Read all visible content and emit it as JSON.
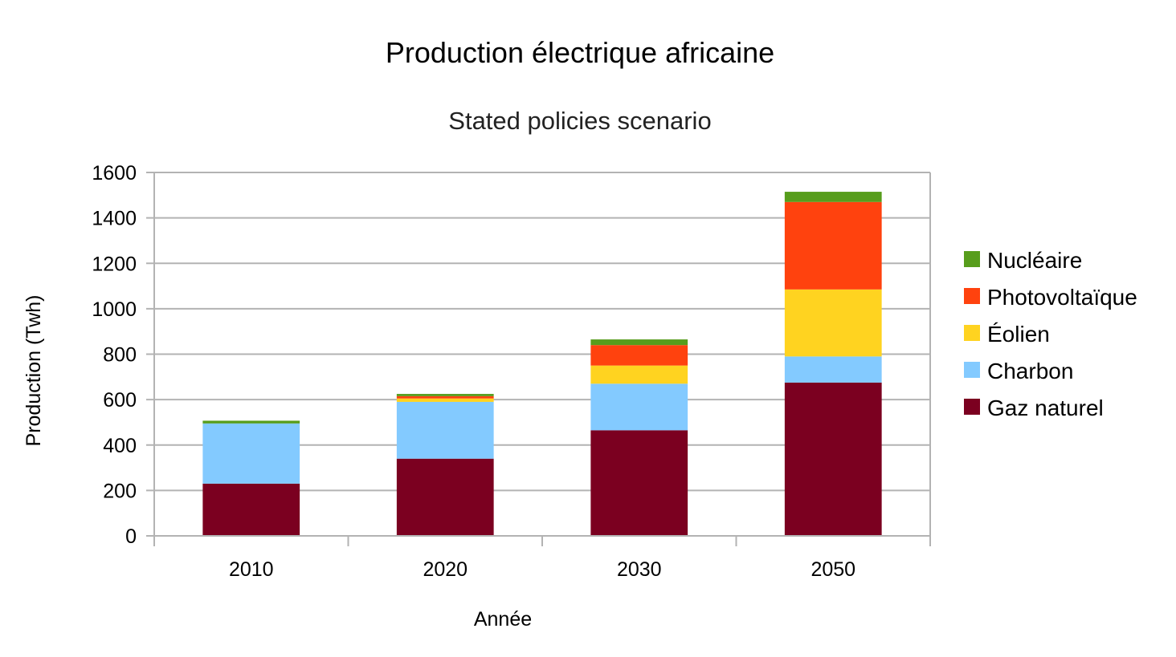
{
  "chart_data": {
    "type": "bar",
    "stacked": true,
    "title": "Production électrique africaine",
    "subtitle": "Stated policies scenario",
    "xlabel": "Année",
    "ylabel": "Production (Twh)",
    "categories": [
      "2010",
      "2020",
      "2030",
      "2050"
    ],
    "ylim": [
      0,
      1600
    ],
    "yticks": [
      "0",
      "200",
      "400",
      "600",
      "800",
      "1000",
      "1200",
      "1400",
      "1600"
    ],
    "grid": true,
    "legend_position": "right",
    "series": [
      {
        "name": "Gaz naturel",
        "color": "#7b0020",
        "values": [
          230,
          340,
          465,
          675
        ]
      },
      {
        "name": "Charbon",
        "color": "#83caff",
        "values": [
          265,
          250,
          205,
          115
        ]
      },
      {
        "name": "Éolien",
        "color": "#ffd320",
        "values": [
          0,
          15,
          80,
          295
        ]
      },
      {
        "name": "Photovoltaïque",
        "color": "#ff420e",
        "values": [
          0,
          10,
          90,
          385
        ]
      },
      {
        "name": "Nucléaire",
        "color": "#579d1c",
        "values": [
          12,
          10,
          25,
          45
        ]
      }
    ]
  }
}
